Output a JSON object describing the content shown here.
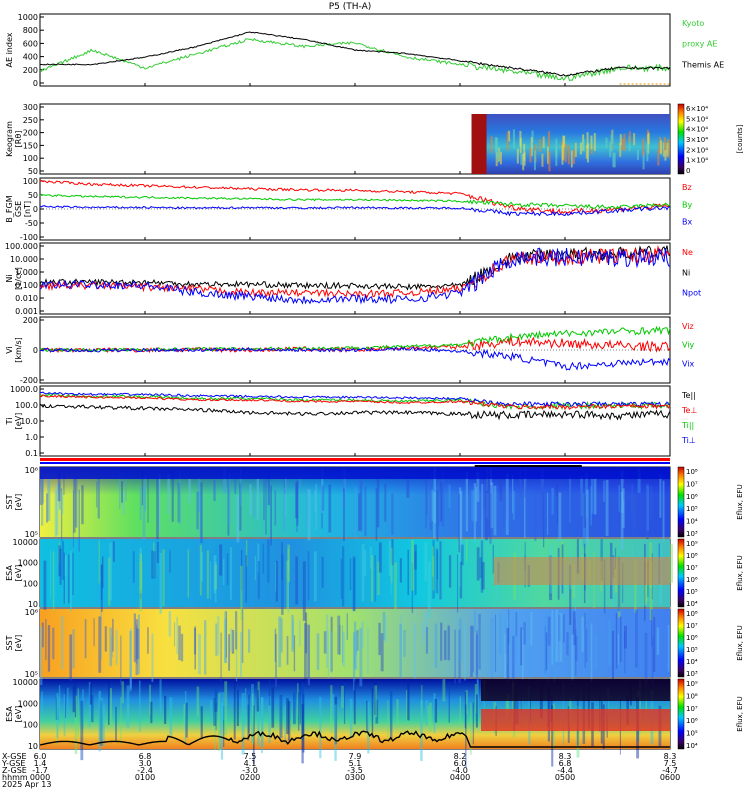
{
  "title": "P5 (TH-A)",
  "colors": {
    "red": "#ff0000",
    "green": "#00c800",
    "blue": "#0000ff",
    "black": "#000000",
    "kyoto": "#33cc33",
    "orange": "#e69500"
  },
  "panels": [
    {
      "id": "ae",
      "ylabel": [
        "AE index"
      ],
      "ticks": [
        "1000",
        "800",
        "600",
        "400",
        "200",
        "0"
      ],
      "legend": [
        {
          "text": "Kyoto",
          "color": "#33cc33"
        },
        {
          "text": "proxy AE",
          "color": "#33cc33"
        },
        {
          "text": "Themis AE",
          "color": "#000000"
        }
      ]
    },
    {
      "id": "keo",
      "ylabel": [
        "Keogram",
        "[Rθ]"
      ],
      "ticks": [
        "300",
        "250",
        "200",
        "150",
        "100",
        "50"
      ],
      "colorbar": {
        "ticks": [
          "6×10⁴",
          "5×10⁴",
          "4×10⁴",
          "3×10⁴",
          "2×10⁴",
          "1×10⁴",
          "0"
        ],
        "units": "[counts]"
      }
    },
    {
      "id": "bfgm",
      "ylabel": [
        "B_FGM",
        "GSE",
        "[nT]"
      ],
      "ticks": [
        "100",
        "50",
        "0",
        "-50",
        "-100"
      ],
      "legend": [
        {
          "text": "Bz",
          "color": "#ff0000"
        },
        {
          "text": "By",
          "color": "#00c800"
        },
        {
          "text": "Bx",
          "color": "#0000ff"
        }
      ]
    },
    {
      "id": "ni",
      "ylabel": [
        "Ni",
        "[1/cc]"
      ],
      "ticks": [
        "100.000",
        "10.000",
        "1.000",
        "0.100",
        "0.010",
        "0.001"
      ],
      "legend": [
        {
          "text": "Ne",
          "color": "#ff0000"
        },
        {
          "text": "Ni",
          "color": "#000000"
        },
        {
          "text": "Npot",
          "color": "#0000ff"
        }
      ]
    },
    {
      "id": "vi",
      "ylabel": [
        "Vi",
        "[km/s]"
      ],
      "ticks": [
        "200",
        "0",
        "-200"
      ],
      "legend": [
        {
          "text": "Viz",
          "color": "#ff0000"
        },
        {
          "text": "Viy",
          "color": "#00c800"
        },
        {
          "text": "Vix",
          "color": "#0000ff"
        }
      ]
    },
    {
      "id": "ti",
      "ylabel": [
        "Ti",
        "[eV]"
      ],
      "ticks": [
        "1000.0",
        "100.0",
        "10.0",
        "1.0",
        "0.1"
      ],
      "legend": [
        {
          "text": "Te||",
          "color": "#000000"
        },
        {
          "text": "Te⊥",
          "color": "#ff0000"
        },
        {
          "text": "Ti||",
          "color": "#00c800"
        },
        {
          "text": "Ti⊥",
          "color": "#0000ff"
        }
      ]
    },
    {
      "id": "sst_e",
      "ylabel": [
        "SST",
        "[eV]"
      ],
      "ticks": [
        "10⁶",
        "10⁵"
      ],
      "colorbar": {
        "ticks": [
          "10⁸",
          "10⁷",
          "10⁶",
          "10⁵",
          "10⁴",
          "10³"
        ],
        "units": "Eflux, EFU"
      }
    },
    {
      "id": "esa_e",
      "ylabel": [
        "ESA",
        "[eV]"
      ],
      "ticks": [
        "10000",
        "1000",
        "100",
        "10"
      ],
      "colorbar": {
        "ticks": [
          "10⁹",
          "10⁸",
          "10⁷",
          "10⁶",
          "10⁵",
          "10⁴"
        ],
        "units": "Eflux, EFU"
      }
    },
    {
      "id": "sst_i",
      "ylabel": [
        "SST",
        "[eV]"
      ],
      "ticks": [
        "10⁶",
        "10⁵"
      ],
      "colorbar": {
        "ticks": [
          "10⁸",
          "10⁷",
          "10⁶",
          "10⁵",
          "10⁴",
          "10³"
        ],
        "units": "Eflux, EFU"
      }
    },
    {
      "id": "esa_i",
      "ylabel": [
        "ESA",
        "[eV]"
      ],
      "ticks": [
        "10000",
        "1000",
        "100",
        "10"
      ],
      "colorbar": {
        "ticks": [
          "10⁹",
          "10⁸",
          "10⁷",
          "10⁶",
          "10⁵",
          "10⁴"
        ],
        "units": "Eflux, EFU"
      }
    }
  ],
  "xaxis": {
    "row_labels": [
      "X-GSE",
      "Y-GSE",
      "Z-GSE",
      "hhmm",
      "2025 Apr 13"
    ],
    "ticks": [
      {
        "x": "6.0",
        "y": "1.4",
        "z": "-1.7",
        "t": "0000"
      },
      {
        "x": "6.8",
        "y": "3.0",
        "z": "-2.4",
        "t": "0100"
      },
      {
        "x": "7.5",
        "y": "4.1",
        "z": "-3.0",
        "t": "0200"
      },
      {
        "x": "7.9",
        "y": "5.1",
        "z": "-3.5",
        "t": "0300"
      },
      {
        "x": "8.2",
        "y": "6.0",
        "z": "-4.0",
        "t": "0400"
      },
      {
        "x": "8.3",
        "y": "6.8",
        "z": "-4.4",
        "t": "0500"
      },
      {
        "x": "8.3",
        "y": "7.5",
        "z": "-4.7",
        "t": "0600"
      }
    ]
  },
  "chart_data": {
    "type": "line",
    "title": "P5 (TH-A)",
    "x_unit": "hhmm",
    "x": [
      "0000",
      "0030",
      "0100",
      "0130",
      "0200",
      "0230",
      "0300",
      "0330",
      "0400",
      "0430",
      "0500",
      "0530",
      "0600"
    ],
    "series": [
      {
        "name": "Kyoto proxy AE",
        "values": [
          200,
          500,
          250,
          450,
          650,
          550,
          600,
          400,
          300,
          200,
          100,
          250,
          250
        ]
      },
      {
        "name": "Themis AE",
        "values": [
          300,
          300,
          400,
          550,
          750,
          650,
          500,
          450,
          350,
          250,
          150,
          250,
          250
        ]
      },
      {
        "name": "Bz",
        "values": [
          90,
          80,
          75,
          70,
          65,
          62,
          60,
          55,
          50,
          5,
          -10,
          0,
          10
        ]
      },
      {
        "name": "By",
        "values": [
          45,
          40,
          38,
          35,
          33,
          30,
          30,
          28,
          25,
          15,
          10,
          5,
          15
        ]
      },
      {
        "name": "Bx",
        "values": [
          8,
          5,
          5,
          3,
          5,
          3,
          5,
          3,
          3,
          -15,
          -15,
          -5,
          5
        ]
      },
      {
        "name": "Viz",
        "values": [
          0,
          0,
          0,
          5,
          0,
          10,
          0,
          20,
          30,
          80,
          60,
          40,
          30
        ]
      },
      {
        "name": "Viy",
        "values": [
          0,
          0,
          5,
          10,
          10,
          15,
          20,
          30,
          50,
          120,
          150,
          170,
          180
        ]
      },
      {
        "name": "Vix",
        "values": [
          0,
          -5,
          0,
          0,
          5,
          0,
          0,
          10,
          -10,
          -60,
          -150,
          -120,
          -100
        ]
      }
    ],
    "ylim_ae": [
      0,
      1000
    ],
    "ylim_b": [
      -100,
      100
    ],
    "ylim_vi": [
      -300,
      300
    ],
    "keogram_range": [
      0,
      300
    ],
    "grid": false
  }
}
